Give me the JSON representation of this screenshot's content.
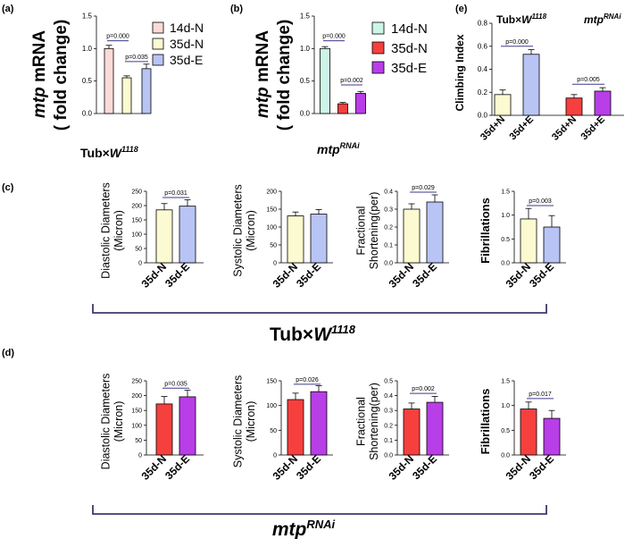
{
  "labels": {
    "panel_a": "(a)",
    "panel_b": "(b)",
    "panel_c": "(c)",
    "panel_d": "(d)",
    "panel_e": "(e)",
    "tub_prefix": "Tub×",
    "w_letter": "W",
    "w_sup": "1118",
    "mtp_word": "mtp",
    "rnai_sup": "RNAi",
    "mrna_word": " mRNA",
    "fold_change": "( fold change)"
  },
  "colors": {
    "d14N": "#fadbd8",
    "d35N": "#fcfad0",
    "d35E": "#b8c4f4",
    "rnai14N": "#cdf5e6",
    "rnaiN": "#f5403e",
    "rnaiE": "#b83ee8",
    "bracket": "#3d3a6e"
  },
  "chart_data": [
    {
      "id": "a",
      "type": "bar",
      "title": "Tub×W1118",
      "ylabel": "mtp mRNA ( fold change)",
      "ylim": [
        0,
        1.5
      ],
      "yticks": [
        0.0,
        0.5,
        1.0,
        1.5
      ],
      "categories": [
        "14d-N",
        "35d-N",
        "35d-E"
      ],
      "values": [
        1.0,
        0.55,
        0.69
      ],
      "errors": [
        0.05,
        0.03,
        0.07
      ],
      "colors": [
        "#fadbd8",
        "#fcfad0",
        "#b8c4f4"
      ],
      "annotations": [
        {
          "text": "p=0.000",
          "from": 0,
          "to": 1,
          "y": 1.12
        },
        {
          "text": "p=0.035",
          "from": 1,
          "to": 2,
          "y": 0.8
        }
      ],
      "legend": [
        "14d-N",
        "35d-N",
        "35d-E"
      ],
      "legend_position": "right"
    },
    {
      "id": "b",
      "type": "bar",
      "title": "mtpRNAi",
      "ylabel": "mtp mRNA ( fold change)",
      "ylim": [
        0,
        1.5
      ],
      "yticks": [
        0.0,
        0.5,
        1.0,
        1.5
      ],
      "categories": [
        "14d-N",
        "35d-N",
        "35d-E"
      ],
      "values": [
        1.0,
        0.15,
        0.31
      ],
      "errors": [
        0.03,
        0.02,
        0.03
      ],
      "colors": [
        "#cdf5e6",
        "#f5403e",
        "#b83ee8"
      ],
      "annotations": [
        {
          "text": "p=0.000",
          "from": 0,
          "to": 1,
          "y": 1.12
        },
        {
          "text": "p=0.002",
          "from": 1,
          "to": 2,
          "y": 0.44
        }
      ],
      "legend": [
        "14d-N",
        "35d-N",
        "35d-E"
      ],
      "legend_position": "right"
    },
    {
      "id": "e",
      "type": "bar",
      "title": "Climbing Index",
      "ylabel": "Climbing Index",
      "group_labels": [
        "Tub×W1118",
        "mtpRNAi"
      ],
      "ylim": [
        0,
        0.8
      ],
      "yticks": [
        0.0,
        0.2,
        0.4,
        0.6,
        0.8
      ],
      "categories": [
        "35d+N",
        "35d+E",
        "35d+N",
        "35d+E"
      ],
      "values": [
        0.18,
        0.53,
        0.15,
        0.21
      ],
      "errors": [
        0.04,
        0.04,
        0.03,
        0.03
      ],
      "colors": [
        "#fcfad0",
        "#b8c4f4",
        "#f5403e",
        "#b83ee8"
      ],
      "annotations": [
        {
          "text": "p=0.000",
          "from": 0,
          "to": 1,
          "y": 0.6
        },
        {
          "text": "p=0.005",
          "from": 2,
          "to": 3,
          "y": 0.27
        }
      ]
    },
    {
      "id": "c1",
      "type": "bar",
      "group": "Tub×W1118",
      "ylabel": "Diastolic Diameters (Micron)",
      "ylim": [
        0,
        250
      ],
      "yticks": [
        0,
        50,
        100,
        150,
        200,
        250
      ],
      "categories": [
        "35d-N",
        "35d-E"
      ],
      "values": [
        185,
        198
      ],
      "errors": [
        22,
        22
      ],
      "colors": [
        "#fcfad0",
        "#b8c4f4"
      ],
      "annotations": [
        {
          "text": "p=0.031",
          "from": 0,
          "to": 1,
          "y": 228
        }
      ]
    },
    {
      "id": "c2",
      "type": "bar",
      "group": "Tub×W1118",
      "ylabel": "Systolic Diameters (Micron)",
      "ylim": [
        0,
        200
      ],
      "yticks": [
        0,
        50,
        100,
        150,
        200
      ],
      "categories": [
        "35d-N",
        "35d-E"
      ],
      "values": [
        131,
        136
      ],
      "errors": [
        11,
        13
      ],
      "colors": [
        "#fcfad0",
        "#b8c4f4"
      ],
      "annotations": []
    },
    {
      "id": "c3",
      "type": "bar",
      "group": "Tub×W1118",
      "ylabel": "Fractional Shortening(per)",
      "ylim": [
        0,
        0.4
      ],
      "yticks": [
        0.0,
        0.1,
        0.2,
        0.3,
        0.4
      ],
      "categories": [
        "35d-N",
        "35d-E"
      ],
      "values": [
        0.3,
        0.34
      ],
      "errors": [
        0.03,
        0.04
      ],
      "colors": [
        "#fcfad0",
        "#b8c4f4"
      ],
      "annotations": [
        {
          "text": "p=0.029",
          "from": 0,
          "to": 1,
          "y": 0.395
        }
      ]
    },
    {
      "id": "c4",
      "type": "bar",
      "group": "Tub×W1118",
      "ylabel": "Fibrillations",
      "ylim": [
        0,
        1.5
      ],
      "yticks": [
        0.0,
        0.5,
        1.0,
        1.5
      ],
      "categories": [
        "35d-N",
        "35d-E"
      ],
      "values": [
        0.92,
        0.75
      ],
      "errors": [
        0.22,
        0.24
      ],
      "colors": [
        "#fcfad0",
        "#b8c4f4"
      ],
      "annotations": [
        {
          "text": "p=0.003",
          "from": 0,
          "to": 1,
          "y": 1.2
        }
      ]
    },
    {
      "id": "d1",
      "type": "bar",
      "group": "mtpRNAi",
      "ylabel": "Diastolic Diameters (Micron)",
      "ylim": [
        0,
        250
      ],
      "yticks": [
        0,
        50,
        100,
        150,
        200,
        250
      ],
      "categories": [
        "35d-N",
        "35d-E"
      ],
      "values": [
        172,
        196
      ],
      "errors": [
        25,
        22
      ],
      "colors": [
        "#f5403e",
        "#b83ee8"
      ],
      "annotations": [
        {
          "text": "p=0.035",
          "from": 0,
          "to": 1,
          "y": 225
        }
      ]
    },
    {
      "id": "d2",
      "type": "bar",
      "group": "mtpRNAi",
      "ylabel": "Systolic Diameters (Micron)",
      "ylim": [
        0,
        150
      ],
      "yticks": [
        0,
        50,
        100,
        150
      ],
      "categories": [
        "35d-N",
        "35d-E"
      ],
      "values": [
        112,
        128
      ],
      "errors": [
        13,
        12
      ],
      "colors": [
        "#f5403e",
        "#b83ee8"
      ],
      "annotations": [
        {
          "text": "p=0.026",
          "from": 0,
          "to": 1,
          "y": 143
        }
      ]
    },
    {
      "id": "d3",
      "type": "bar",
      "group": "mtpRNAi",
      "ylabel": "Fractional Shortening(per)",
      "ylim": [
        0,
        0.5
      ],
      "yticks": [
        0.0,
        0.1,
        0.2,
        0.3,
        0.4,
        0.5
      ],
      "categories": [
        "35d-N",
        "35d-E"
      ],
      "values": [
        0.31,
        0.355
      ],
      "errors": [
        0.04,
        0.04
      ],
      "colors": [
        "#f5403e",
        "#b83ee8"
      ],
      "annotations": [
        {
          "text": "p=0.002",
          "from": 0,
          "to": 1,
          "y": 0.415
        }
      ]
    },
    {
      "id": "d4",
      "type": "bar",
      "group": "mtpRNAi",
      "ylabel": "Fibrillations",
      "ylim": [
        0,
        1.5
      ],
      "yticks": [
        0.0,
        0.5,
        1.0,
        1.5
      ],
      "categories": [
        "35d-N",
        "35d-E"
      ],
      "values": [
        0.93,
        0.74
      ],
      "errors": [
        0.14,
        0.16
      ],
      "colors": [
        "#f5403e",
        "#b83ee8"
      ],
      "annotations": [
        {
          "text": "p=0.017",
          "from": 0,
          "to": 1,
          "y": 1.14
        }
      ]
    }
  ]
}
